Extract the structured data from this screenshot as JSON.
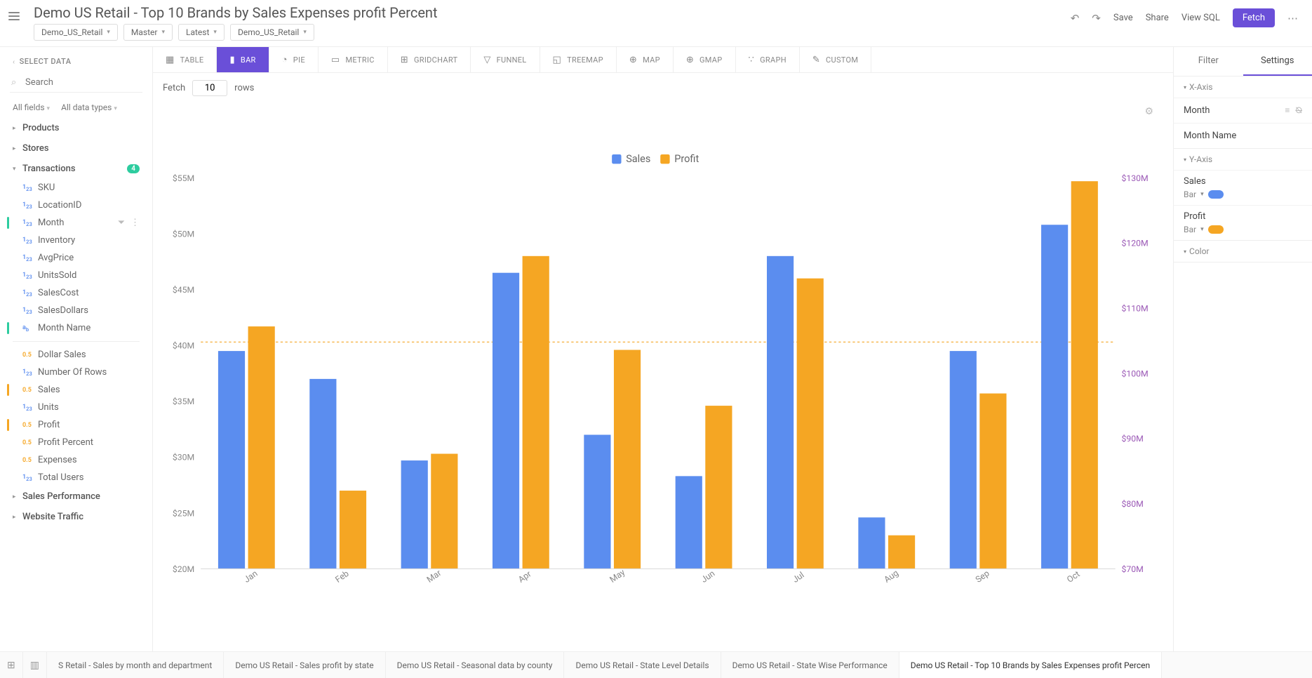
{
  "header": {
    "title": "Demo US Retail - Top 10 Brands by Sales Expenses profit Percent",
    "dropdowns": [
      "Demo_US_Retail",
      "Master",
      "Latest",
      "Demo_US_Retail"
    ],
    "actions": {
      "save": "Save",
      "share": "Share",
      "viewsql": "View SQL",
      "fetch": "Fetch"
    }
  },
  "left": {
    "section": "SELECT DATA",
    "search_placeholder": "Search",
    "filter1": "All fields",
    "filter2": "All data types",
    "groups": [
      {
        "label": "Products",
        "expanded": false
      },
      {
        "label": "Stores",
        "expanded": false
      },
      {
        "label": "Transactions",
        "expanded": true,
        "badge": "4",
        "items": [
          {
            "type": "123",
            "label": "SKU"
          },
          {
            "type": "123",
            "label": "LocationID"
          },
          {
            "type": "123",
            "label": "Month",
            "selected": true,
            "actions": true
          },
          {
            "type": "123",
            "label": "Inventory"
          },
          {
            "type": "123",
            "label": "AvgPrice"
          },
          {
            "type": "123",
            "label": "UnitsSold"
          },
          {
            "type": "123",
            "label": "SalesCost"
          },
          {
            "type": "123",
            "label": "SalesDollars"
          },
          {
            "type": "abc",
            "label": "Month Name",
            "selected": true
          }
        ],
        "metrics": [
          {
            "type": "0.5",
            "label": "Dollar Sales"
          },
          {
            "type": "123",
            "label": "Number Of Rows"
          },
          {
            "type": "0.5",
            "label": "Sales",
            "selected": true
          },
          {
            "type": "123",
            "label": "Units"
          },
          {
            "type": "0.5",
            "label": "Profit",
            "selected": true
          },
          {
            "type": "0.5",
            "label": "Profit Percent"
          },
          {
            "type": "0.5",
            "label": "Expenses"
          },
          {
            "type": "123",
            "label": "Total Users"
          }
        ]
      },
      {
        "label": "Sales Performance",
        "expanded": false
      },
      {
        "label": "Website Traffic",
        "expanded": false
      }
    ]
  },
  "viz_tabs": [
    {
      "icon": "▦",
      "label": "TABLE"
    },
    {
      "icon": "▮",
      "label": "BAR",
      "active": true
    },
    {
      "icon": "◔",
      "label": "PIE"
    },
    {
      "icon": "▭",
      "label": "METRIC"
    },
    {
      "icon": "⊞",
      "label": "GRIDCHART"
    },
    {
      "icon": "▽",
      "label": "FUNNEL"
    },
    {
      "icon": "◱",
      "label": "TREEMAP"
    },
    {
      "icon": "⊕",
      "label": "MAP"
    },
    {
      "icon": "⊕",
      "label": "GMAP"
    },
    {
      "icon": "∵",
      "label": "GRAPH"
    },
    {
      "icon": "✎",
      "label": "CUSTOM"
    }
  ],
  "fetch_row": {
    "fetch": "Fetch",
    "value": "10",
    "rows": "rows"
  },
  "chart": {
    "legend": [
      "Sales",
      "Profit"
    ],
    "categories": [
      "Jan",
      "Feb",
      "Mar",
      "Apr",
      "May",
      "Jun",
      "Jul",
      "Aug",
      "Sep",
      "Oct"
    ],
    "sales": [
      39.5,
      37.0,
      29.7,
      46.5,
      32.0,
      28.3,
      48.0,
      24.6,
      39.5,
      50.8
    ],
    "profit": [
      41.7,
      27.0,
      30.3,
      48.0,
      39.6,
      34.6,
      46.0,
      23.0,
      35.7,
      54.7
    ],
    "left_axis": {
      "min": 20,
      "max": 55,
      "step": 5,
      "prefix": "$",
      "suffix": "M",
      "color": "#888"
    },
    "right_axis": {
      "min": 70,
      "max": 130,
      "step": 10,
      "prefix": "$",
      "suffix": "M",
      "color": "#9b59b6"
    },
    "reference_line": 40.3,
    "colors": {
      "sales": "#5b8def",
      "profit": "#f5a623",
      "ref": "#f5a623",
      "grid": "#eeeeee",
      "axis_text": "#888888"
    },
    "bar_group_width": 0.62
  },
  "right": {
    "tabs": [
      "Filter",
      "Settings"
    ],
    "active_tab": "Settings",
    "xaxis": {
      "label": "X-Axis",
      "items": [
        "Month",
        "Month Name"
      ]
    },
    "yaxis": {
      "label": "Y-Axis",
      "series": [
        {
          "name": "Sales",
          "mode": "Bar",
          "color": "#5b8def"
        },
        {
          "name": "Profit",
          "mode": "Bar",
          "color": "#f5a623"
        }
      ]
    },
    "color_section": "Color"
  },
  "footer_tabs": [
    "S Retail - Sales by month and department",
    "Demo US Retail - Sales profit by state",
    "Demo US Retail - Seasonal data by county",
    "Demo US Retail - State Level Details",
    "Demo US Retail - State Wise Performance",
    "Demo US Retail - Top 10 Brands by Sales Expenses profit Percen"
  ],
  "footer_active": 5
}
